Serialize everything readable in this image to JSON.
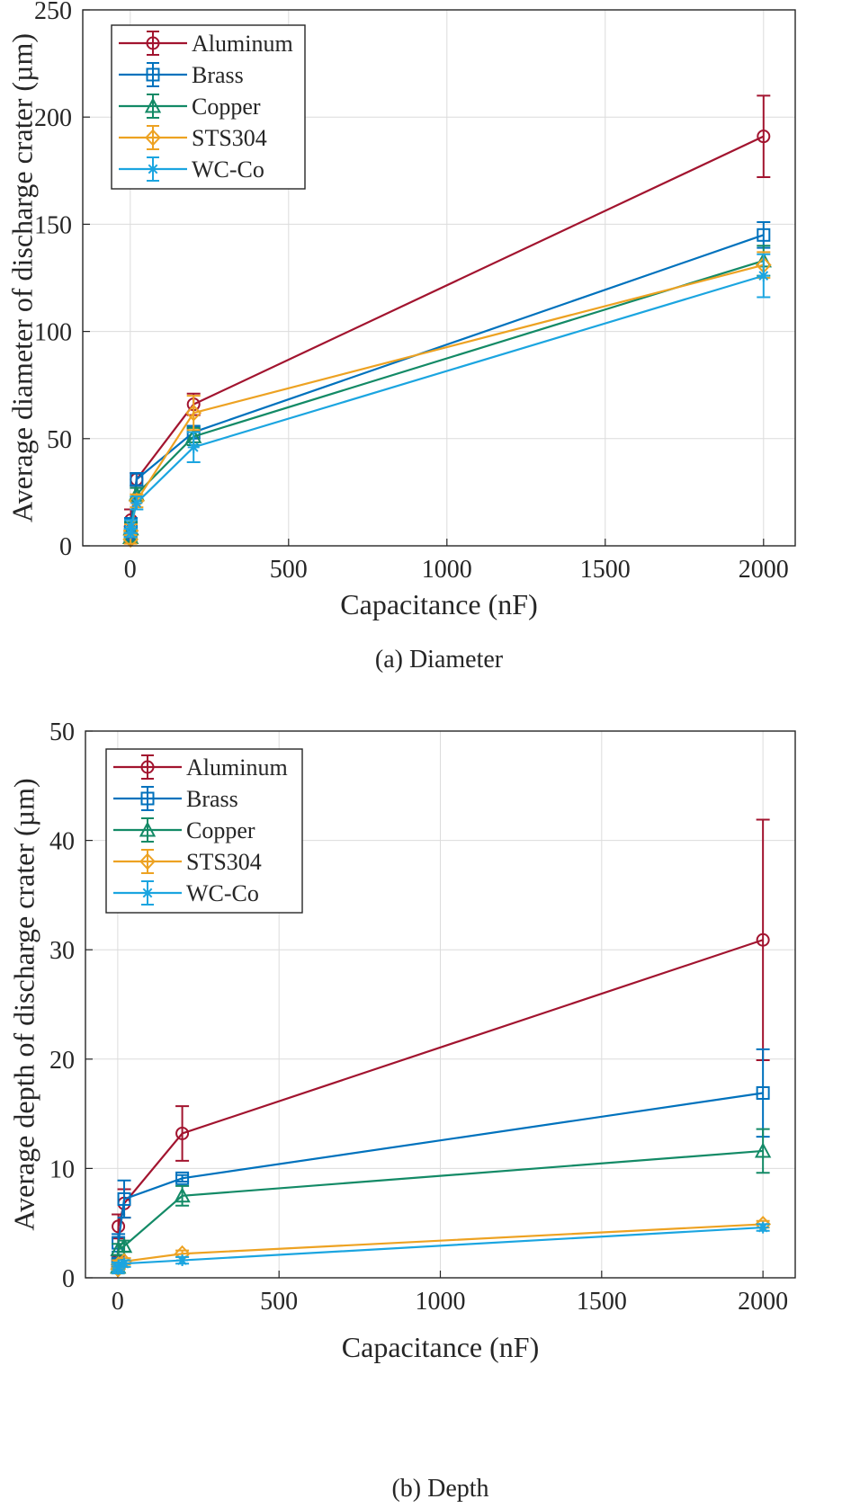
{
  "chart_data": [
    {
      "type": "line",
      "caption": "(a) Diameter",
      "xlabel": "Capacitance (nF)",
      "ylabel": "Average diameter of discharge crater (µm)",
      "xlim": [
        -150,
        2100
      ],
      "ylim": [
        0,
        250
      ],
      "xticks": [
        0,
        500,
        1000,
        1500,
        2000
      ],
      "yticks": [
        0,
        50,
        100,
        150,
        200,
        250
      ],
      "grid": true,
      "legend_position": "top-left",
      "x": [
        1,
        2,
        20,
        200,
        2000
      ],
      "series": [
        {
          "name": "Aluminum",
          "color": "#A2142F",
          "marker": "circle",
          "values": [
            6,
            12,
            31,
            66,
            191
          ],
          "errors": [
            3,
            5,
            3,
            5,
            19
          ]
        },
        {
          "name": "Brass",
          "color": "#0072BD",
          "marker": "square",
          "values": [
            5,
            10,
            31,
            53,
            145
          ],
          "errors": [
            2,
            3,
            3,
            3,
            6
          ]
        },
        {
          "name": "Copper",
          "color": "#138A66",
          "marker": "triangle",
          "values": [
            4,
            8,
            24,
            51,
            133
          ],
          "errors": [
            2,
            3,
            3,
            4,
            7
          ]
        },
        {
          "name": "STS304",
          "color": "#EDA222",
          "marker": "diamond",
          "values": [
            3,
            7,
            21,
            62,
            131
          ],
          "errors": [
            2,
            3,
            3,
            8,
            6
          ]
        },
        {
          "name": "WC-Co",
          "color": "#1BA5E0",
          "marker": "asterisk",
          "values": [
            6,
            9,
            20,
            46,
            126
          ],
          "errors": [
            2,
            3,
            3,
            7,
            10
          ]
        }
      ]
    },
    {
      "type": "line",
      "caption": "(b) Depth",
      "xlabel": "Capacitance (nF)",
      "ylabel": "Average depth of discharge crater (µm)",
      "xlim": [
        -100,
        2100
      ],
      "ylim": [
        0,
        50
      ],
      "xticks": [
        0,
        500,
        1000,
        1500,
        2000
      ],
      "yticks": [
        0,
        10,
        20,
        30,
        40,
        50
      ],
      "grid": true,
      "legend_position": "top-left",
      "x": [
        1,
        2,
        20,
        200,
        2000
      ],
      "series": [
        {
          "name": "Aluminum",
          "color": "#A2142F",
          "marker": "circle",
          "values": [
            1.5,
            4.7,
            6.8,
            13.2,
            30.9
          ],
          "errors": [
            0.5,
            1.1,
            1.3,
            2.5,
            11
          ]
        },
        {
          "name": "Brass",
          "color": "#0072BD",
          "marker": "square",
          "values": [
            1.3,
            3.2,
            7.2,
            9.1,
            16.9
          ],
          "errors": [
            0.4,
            0.8,
            1.7,
            0.3,
            4
          ]
        },
        {
          "name": "Copper",
          "color": "#138A66",
          "marker": "triangle",
          "values": [
            1.0,
            2.6,
            2.9,
            7.5,
            11.6
          ],
          "errors": [
            0.3,
            0.5,
            0.5,
            0.9,
            2
          ]
        },
        {
          "name": "STS304",
          "color": "#EDA222",
          "marker": "diamond",
          "values": [
            0.8,
            1.2,
            1.5,
            2.2,
            4.9
          ],
          "errors": [
            0.4,
            0.4,
            0.3,
            0.3,
            0.3
          ]
        },
        {
          "name": "WC-Co",
          "color": "#1BA5E0",
          "marker": "asterisk",
          "values": [
            0.8,
            1.0,
            1.3,
            1.6,
            4.6
          ],
          "errors": [
            0.4,
            0.4,
            0.3,
            0.3,
            0.3
          ]
        }
      ]
    }
  ]
}
